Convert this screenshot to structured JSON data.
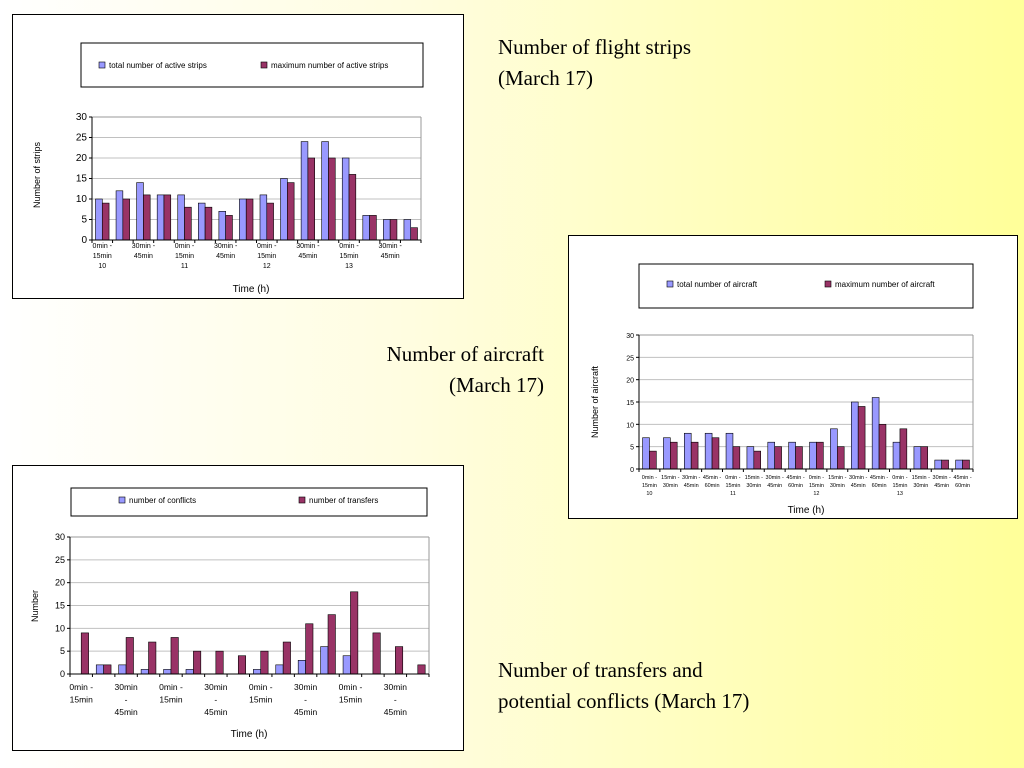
{
  "captions": {
    "strips": [
      "Number of flight strips",
      "(March 17)"
    ],
    "aircraft": [
      "Number of aircraft",
      "(March 17)"
    ],
    "transfers": [
      "Number of transfers and",
      "potential conflicts (March 17)"
    ]
  },
  "colors": {
    "series1": "#9999ff",
    "series2": "#993366",
    "grid": "#c0c0c0"
  },
  "chart_data": [
    {
      "id": "strips",
      "type": "bar",
      "legend_position": "top",
      "grid": true,
      "ylabel": "Number  of  strips",
      "xlabel": "Time (h)",
      "ylim": [
        0,
        30
      ],
      "yticks": [
        0,
        5,
        10,
        15,
        20,
        25,
        30
      ],
      "tick_labels": [
        {
          "group": 0,
          "lines": [
            "0min -",
            "15min",
            "10"
          ]
        },
        {
          "group": 2,
          "lines": [
            "30min -",
            "45min"
          ]
        },
        {
          "group": 4,
          "lines": [
            "0min -",
            "15min",
            "11"
          ]
        },
        {
          "group": 6,
          "lines": [
            "30min -",
            "45min"
          ]
        },
        {
          "group": 8,
          "lines": [
            "0min -",
            "15min",
            "12"
          ]
        },
        {
          "group": 10,
          "lines": [
            "30min -",
            "45min"
          ]
        },
        {
          "group": 12,
          "lines": [
            "0min -",
            "15min",
            "13"
          ]
        },
        {
          "group": 14,
          "lines": [
            "30min -",
            "45min"
          ]
        }
      ],
      "series": [
        {
          "name": "total  number  of  active strips",
          "values": [
            10,
            12,
            14,
            11,
            11,
            9,
            7,
            10,
            11,
            15,
            24,
            24,
            20,
            6,
            5,
            5
          ]
        },
        {
          "name": "maximum  number  of  active strips",
          "values": [
            9,
            10,
            11,
            11,
            8,
            8,
            6,
            10,
            9,
            14,
            20,
            20,
            16,
            6,
            5,
            3
          ]
        }
      ]
    },
    {
      "id": "aircraft",
      "type": "bar",
      "legend_position": "top",
      "grid": true,
      "ylabel": "Number  of  aircraft",
      "xlabel": "Time (h)",
      "ylim": [
        0,
        30
      ],
      "yticks": [
        0,
        5,
        10,
        15,
        20,
        25,
        30
      ],
      "tick_labels": [
        {
          "group": 0,
          "lines": [
            "0min -",
            "15min",
            "10"
          ]
        },
        {
          "group": 1,
          "lines": [
            "15min -",
            "30min"
          ]
        },
        {
          "group": 2,
          "lines": [
            "30min -",
            "45min"
          ]
        },
        {
          "group": 3,
          "lines": [
            "45min -",
            "60min"
          ]
        },
        {
          "group": 4,
          "lines": [
            "0min -",
            "15min",
            "11"
          ]
        },
        {
          "group": 5,
          "lines": [
            "15min -",
            "30min"
          ]
        },
        {
          "group": 6,
          "lines": [
            "30min -",
            "45min"
          ]
        },
        {
          "group": 7,
          "lines": [
            "45min -",
            "60min"
          ]
        },
        {
          "group": 8,
          "lines": [
            "0min -",
            "15min",
            "12"
          ]
        },
        {
          "group": 9,
          "lines": [
            "15min -",
            "30min"
          ]
        },
        {
          "group": 10,
          "lines": [
            "30min -",
            "45min"
          ]
        },
        {
          "group": 11,
          "lines": [
            "45min -",
            "60min"
          ]
        },
        {
          "group": 12,
          "lines": [
            "0min -",
            "15min",
            "13"
          ]
        },
        {
          "group": 13,
          "lines": [
            "15min -",
            "30min"
          ]
        },
        {
          "group": 14,
          "lines": [
            "30min -",
            "45min"
          ]
        },
        {
          "group": 15,
          "lines": [
            "45min -",
            "60min"
          ]
        }
      ],
      "series": [
        {
          "name": "total  number  of  aircraft",
          "values": [
            7,
            7,
            8,
            8,
            8,
            5,
            6,
            6,
            6,
            9,
            15,
            16,
            6,
            5,
            2,
            2
          ]
        },
        {
          "name": "maximum  number  of  aircraft",
          "values": [
            4,
            6,
            6,
            7,
            5,
            4,
            5,
            5,
            6,
            5,
            14,
            10,
            9,
            5,
            2,
            2
          ]
        }
      ]
    },
    {
      "id": "transfers",
      "type": "bar",
      "legend_position": "top",
      "grid": true,
      "ylabel": "Number",
      "xlabel": "Time (h)",
      "ylim": [
        0,
        30
      ],
      "yticks": [
        0,
        5,
        10,
        15,
        20,
        25,
        30
      ],
      "tick_labels": [
        {
          "group": 0,
          "lines": [
            "0min -",
            "15min"
          ]
        },
        {
          "group": 2,
          "lines": [
            "30min",
            "-",
            "45min"
          ]
        },
        {
          "group": 4,
          "lines": [
            "0min -",
            "15min"
          ]
        },
        {
          "group": 6,
          "lines": [
            "30min",
            "-",
            "45min"
          ]
        },
        {
          "group": 8,
          "lines": [
            "0min -",
            "15min"
          ]
        },
        {
          "group": 10,
          "lines": [
            "30min",
            "-",
            "45min"
          ]
        },
        {
          "group": 12,
          "lines": [
            "0min -",
            "15min"
          ]
        },
        {
          "group": 14,
          "lines": [
            "30min",
            "-",
            "45min"
          ]
        }
      ],
      "series": [
        {
          "name": "number  of  conflicts",
          "values": [
            0,
            2,
            2,
            1,
            1,
            1,
            0,
            0,
            1,
            2,
            3,
            6,
            4,
            0,
            0,
            0
          ]
        },
        {
          "name": "number  of  transfers",
          "values": [
            9,
            2,
            8,
            7,
            8,
            5,
            5,
            4,
            5,
            7,
            11,
            13,
            18,
            9,
            6,
            2
          ]
        }
      ]
    }
  ]
}
